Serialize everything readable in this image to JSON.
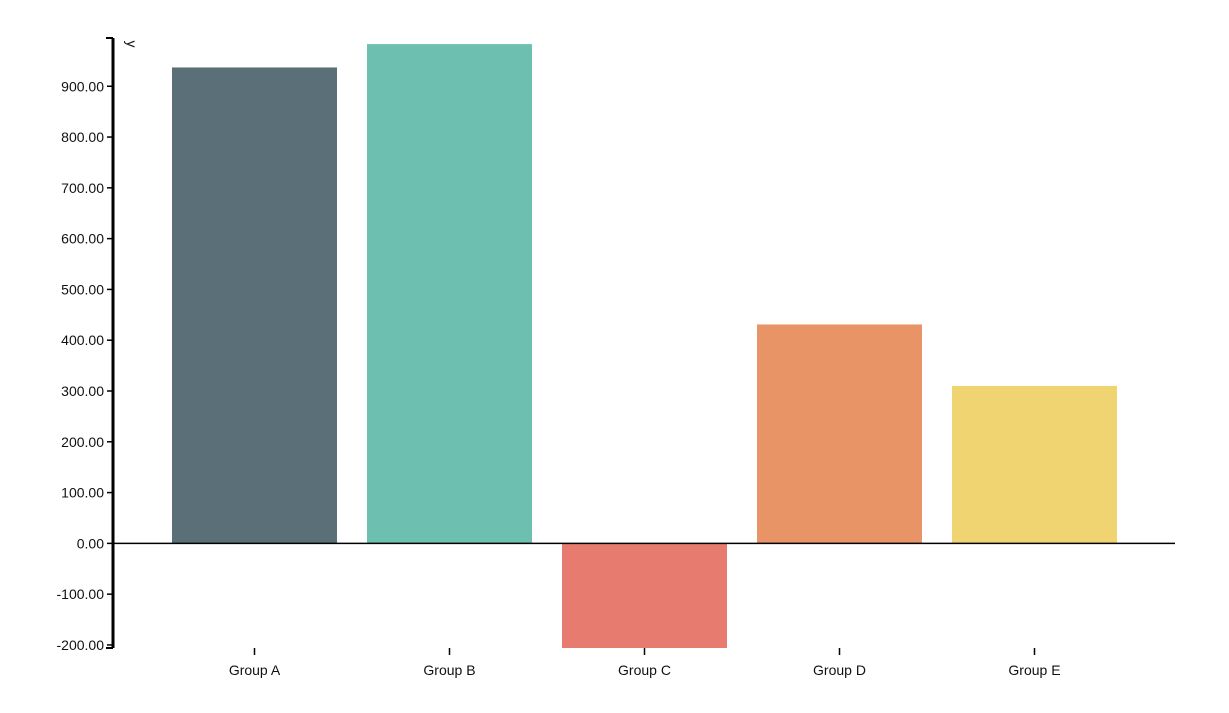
{
  "chart_data": {
    "type": "bar",
    "categories": [
      "Group A",
      "Group B",
      "Group C",
      "Group D",
      "Group E"
    ],
    "values": [
      937,
      983,
      -206,
      431,
      310
    ],
    "colors": [
      "#5b6f78",
      "#6dc0b0",
      "#e77b6f",
      "#e89466",
      "#f1d472"
    ],
    "ylabel": "y",
    "ylim": [
      -206,
      995
    ],
    "yticks": [
      -200,
      -100,
      0,
      100,
      200,
      300,
      400,
      500,
      600,
      700,
      800,
      900
    ],
    "ytick_labels": [
      "-200.00",
      "-100.00",
      "0.00",
      "100.00",
      "200.00",
      "300.00",
      "400.00",
      "500.00",
      "600.00",
      "700.00",
      "800.00",
      "900.00"
    ],
    "grid": false,
    "legend": "none"
  }
}
